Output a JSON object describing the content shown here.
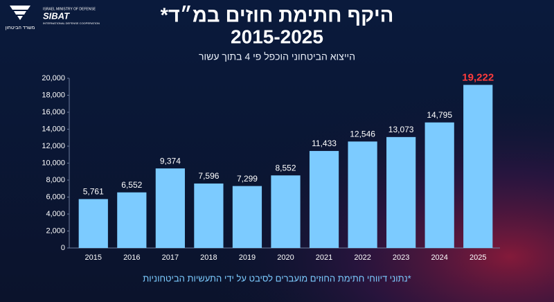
{
  "logo": {
    "top": "ISRAEL MINISTRY OF DEFENSE",
    "brand": "SIBAT",
    "bottom": "INTERNATIONAL DEFENSE COOPERATION",
    "ministry": "משרד הביטחון"
  },
  "chart_data": {
    "type": "bar",
    "title": "היקף חתימת חוזים במ״ד*",
    "title_years": "2015-2025",
    "subtitle": "הייצוא הביטחוני הוכפל פי 4 בתוך עשור",
    "footnote": "*נתוני דיווחי חתימת החוזים מועברים לסיבט על ידי התעשיות הביטחוניות",
    "categories": [
      "2015",
      "2016",
      "2017",
      "2018",
      "2019",
      "2020",
      "2021",
      "2022",
      "2023",
      "2024",
      "2025"
    ],
    "values": [
      5761,
      6552,
      9374,
      7596,
      7299,
      8552,
      11433,
      12546,
      13073,
      14795,
      19222
    ],
    "value_labels": [
      "5,761",
      "6,552",
      "9,374",
      "7,596",
      "7,299",
      "8,552",
      "11,433",
      "12,546",
      "13,073",
      "14,795",
      "19,222"
    ],
    "value_label_colors": [
      "#ffffff",
      "#ffffff",
      "#ffffff",
      "#ffffff",
      "#ffffff",
      "#ffffff",
      "#ffffff",
      "#ffffff",
      "#ffffff",
      "#ffffff",
      "#ff3b3b"
    ],
    "color": "#7ccbff",
    "ylim": [
      0,
      20000
    ],
    "yticks": [
      0,
      {
        "value": 2000,
        "label": "2,000"
      },
      {
        "value": 4000,
        "label": "4,000"
      },
      {
        "value": 6000,
        "label": "6,000"
      },
      {
        "value": 8000,
        "label": "8,000"
      },
      {
        "value": 10000,
        "label": "10,000"
      },
      {
        "value": 12000,
        "label": "12,000"
      },
      {
        "value": 14000,
        "label": "14,000"
      },
      {
        "value": 16000,
        "label": "16,000"
      },
      {
        "value": 18000,
        "label": "18,000"
      },
      {
        "value": 20000,
        "label": "20,000"
      }
    ],
    "grid": false
  }
}
